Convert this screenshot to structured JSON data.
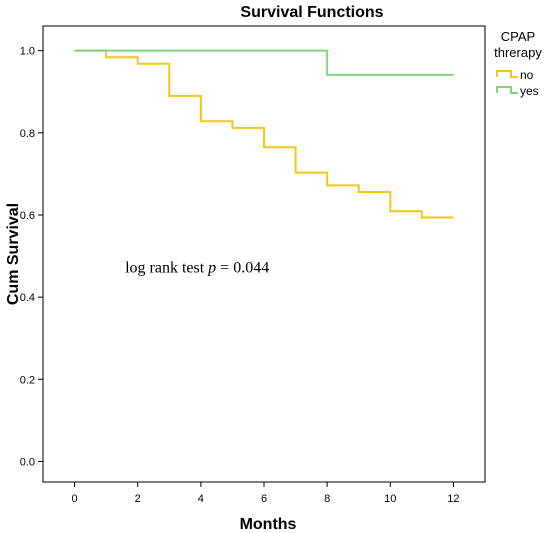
{
  "chart_data": {
    "type": "line",
    "step": true,
    "title": "Survival Functions",
    "xlabel": "Months",
    "ylabel": "Cum Survival",
    "xlim": [
      -1.0,
      13.0
    ],
    "ylim": [
      -0.05,
      1.06
    ],
    "xticks": [
      0,
      2,
      4,
      6,
      8,
      10,
      12
    ],
    "xtick_labels": [
      "0",
      "2",
      "4",
      "6",
      "8",
      "10",
      "12"
    ],
    "yticks": [
      0.0,
      0.2,
      0.4,
      0.6,
      0.8,
      1.0
    ],
    "ytick_labels": [
      "0.0",
      "0.2",
      "0.4",
      "0.6",
      "0.8",
      "1.0"
    ],
    "grid": false,
    "legend": {
      "title_line1": "CPAP",
      "title_line2": "threrapy",
      "placement": "outside-right"
    },
    "annotation": {
      "prefix": "log rank test ",
      "italic": "p",
      "suffix": " = 0.044",
      "x": 1.6,
      "y": 0.46
    },
    "series": [
      {
        "name": "no",
        "color": "#f5c518",
        "x": [
          0,
          1,
          2,
          3,
          4,
          5,
          6,
          7,
          8,
          9,
          10,
          11,
          12
        ],
        "y": [
          1.0,
          0.984,
          0.968,
          0.89,
          0.828,
          0.812,
          0.765,
          0.703,
          0.672,
          0.656,
          0.609,
          0.594,
          0.594
        ]
      },
      {
        "name": "yes",
        "color": "#7fd67f",
        "x": [
          0,
          8,
          12
        ],
        "y": [
          1.0,
          0.941,
          0.941
        ]
      }
    ]
  }
}
